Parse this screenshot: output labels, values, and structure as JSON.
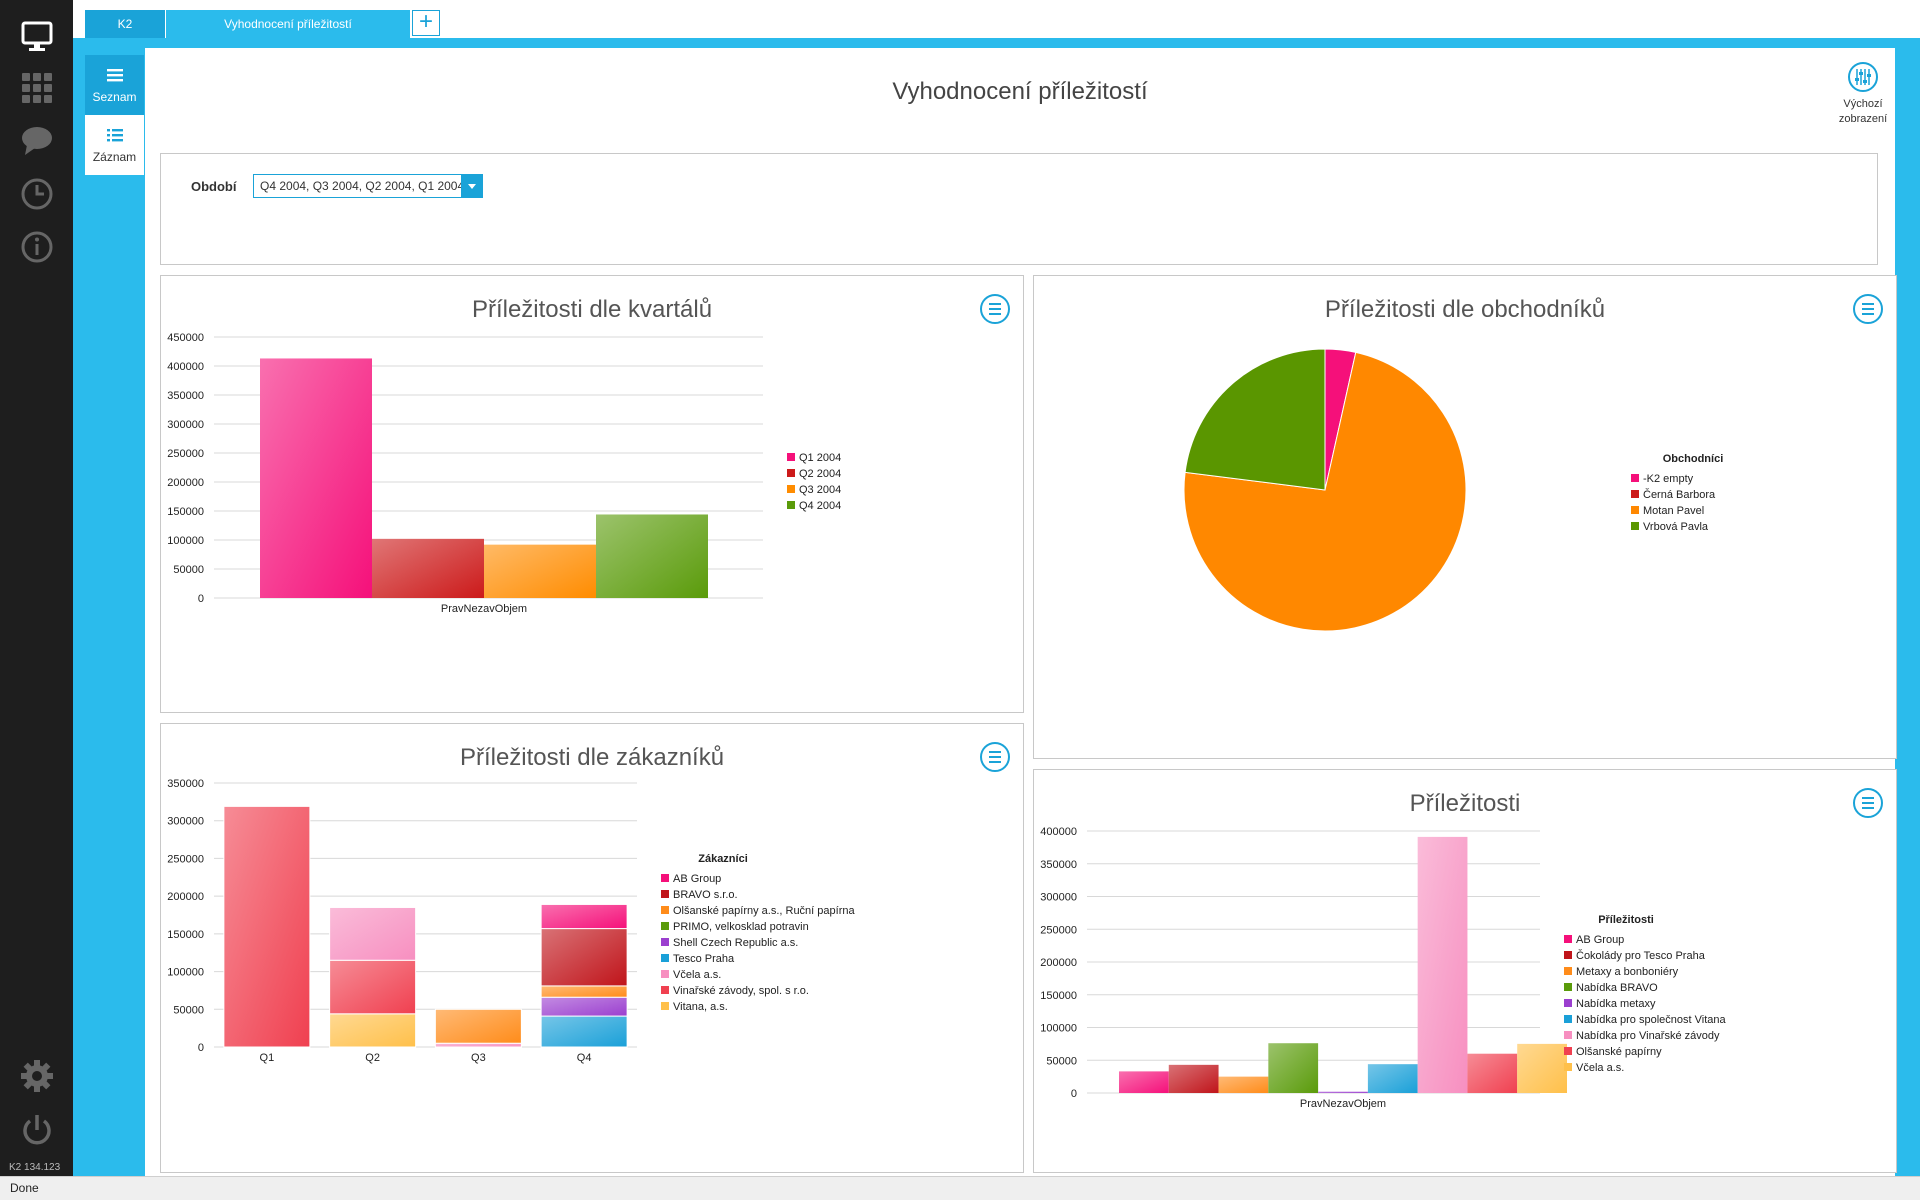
{
  "app": {
    "version": "K2 134.123",
    "status": "Done"
  },
  "tabs": [
    {
      "label": "K2"
    },
    {
      "label": "Vyhodnocení příležitostí"
    }
  ],
  "tab_add_label": "+",
  "left_tabs": [
    {
      "label": "Seznam"
    },
    {
      "label": "Záznam"
    }
  ],
  "page": {
    "title": "Vyhodnocení příležitostí",
    "default_view_line1": "Výchozí",
    "default_view_line2": "zobrazení"
  },
  "filter": {
    "label": "Období",
    "value": "Q4 2004, Q3 2004, Q2 2004, Q1 2004"
  },
  "chart_data": [
    {
      "id": "quarters",
      "type": "bar",
      "title": "Příležitosti dle kvartálů",
      "categories": [
        "PravNezavObjem"
      ],
      "series": [
        {
          "name": "Q1 2004",
          "values": [
            413000
          ],
          "color": "#f5107a"
        },
        {
          "name": "Q2 2004",
          "values": [
            102000
          ],
          "color": "#cc1a1a"
        },
        {
          "name": "Q3 2004",
          "values": [
            92000
          ],
          "color": "#ff8c00"
        },
        {
          "name": "Q4 2004",
          "values": [
            144000
          ],
          "color": "#5a9b0a"
        }
      ],
      "ylim": [
        0,
        450000
      ],
      "yticks": [
        0,
        50000,
        100000,
        150000,
        200000,
        250000,
        300000,
        350000,
        400000,
        450000
      ],
      "legend": "right"
    },
    {
      "id": "sellers",
      "type": "pie",
      "title": "Příležitosti dle obchodníků",
      "legend_title": "Obchodníci",
      "slices": [
        {
          "name": "-K2 empty",
          "value": 3.5,
          "color": "#f5107a"
        },
        {
          "name": "Černá Barbora",
          "value": 0,
          "color": "#cc1a1a"
        },
        {
          "name": "Motan Pavel",
          "value": 73.5,
          "color": "#ff8800"
        },
        {
          "name": "Vrbová Pavla",
          "value": 23,
          "color": "#5a9600"
        }
      ],
      "legend": "right"
    },
    {
      "id": "customers",
      "type": "bar",
      "stacked": true,
      "title": "Příležitosti dle zákazníků",
      "legend_title": "Zákazníci",
      "categories": [
        "Q1",
        "Q2",
        "Q3",
        "Q4"
      ],
      "series": [
        {
          "name": "AB Group",
          "values": [
            0,
            0,
            0,
            32000
          ],
          "color": "#f5107a"
        },
        {
          "name": "BRAVO s.r.o.",
          "values": [
            0,
            0,
            0,
            76000
          ],
          "color": "#c0141a"
        },
        {
          "name": "Olšanské papírny a.s., Ruční papírna",
          "values": [
            0,
            0,
            45000,
            15000
          ],
          "color": "#ff8c1a"
        },
        {
          "name": "PRIMO, velkosklad potravin",
          "values": [
            0,
            0,
            0,
            0
          ],
          "color": "#5a9b0a"
        },
        {
          "name": "Shell Czech Republic a.s.",
          "values": [
            0,
            0,
            0,
            25000
          ],
          "color": "#9b3fcf"
        },
        {
          "name": "Tesco Praha",
          "values": [
            0,
            0,
            0,
            41000
          ],
          "color": "#1aa0d8"
        },
        {
          "name": "Včela a.s.",
          "values": [
            0,
            70000,
            5000,
            0
          ],
          "color": "#f78fc0"
        },
        {
          "name": "Vinařské závody, spol. s r.o.",
          "values": [
            319000,
            71000,
            0,
            0
          ],
          "color": "#f04050"
        },
        {
          "name": "Vitana, a.s.",
          "values": [
            0,
            44000,
            0,
            0
          ],
          "color": "#ffc04a"
        }
      ],
      "ylim": [
        0,
        350000
      ],
      "yticks": [
        0,
        50000,
        100000,
        150000,
        200000,
        250000,
        300000,
        350000
      ],
      "legend": "right"
    },
    {
      "id": "opportunities",
      "type": "bar",
      "title": "Příležitosti",
      "legend_title": "Příležitosti",
      "categories": [
        "PravNezavObjem"
      ],
      "series": [
        {
          "name": "AB Group",
          "values": [
            33000
          ],
          "color": "#f5107a"
        },
        {
          "name": "Čokolády pro Tesco Praha",
          "values": [
            43000
          ],
          "color": "#c0141a"
        },
        {
          "name": "Metaxy a bonboniéry",
          "values": [
            25000
          ],
          "color": "#ff8c1a"
        },
        {
          "name": "Nabídka BRAVO",
          "values": [
            76000
          ],
          "color": "#5a9b0a"
        },
        {
          "name": "Nabídka metaxy",
          "values": [
            2000
          ],
          "color": "#9b3fcf"
        },
        {
          "name": "Nabídka pro společnost Vitana",
          "values": [
            44000
          ],
          "color": "#1aa0d8"
        },
        {
          "name": "Nabídka pro Vinařské závody",
          "values": [
            391000
          ],
          "color": "#f78fc0"
        },
        {
          "name": "Olšanské papírny",
          "values": [
            60000
          ],
          "color": "#f04050"
        },
        {
          "name": "Včela a.s.",
          "values": [
            75000
          ],
          "color": "#ffc04a"
        }
      ],
      "ylim": [
        0,
        400000
      ],
      "yticks": [
        0,
        50000,
        100000,
        150000,
        200000,
        250000,
        300000,
        350000,
        400000
      ],
      "legend": "right"
    }
  ]
}
